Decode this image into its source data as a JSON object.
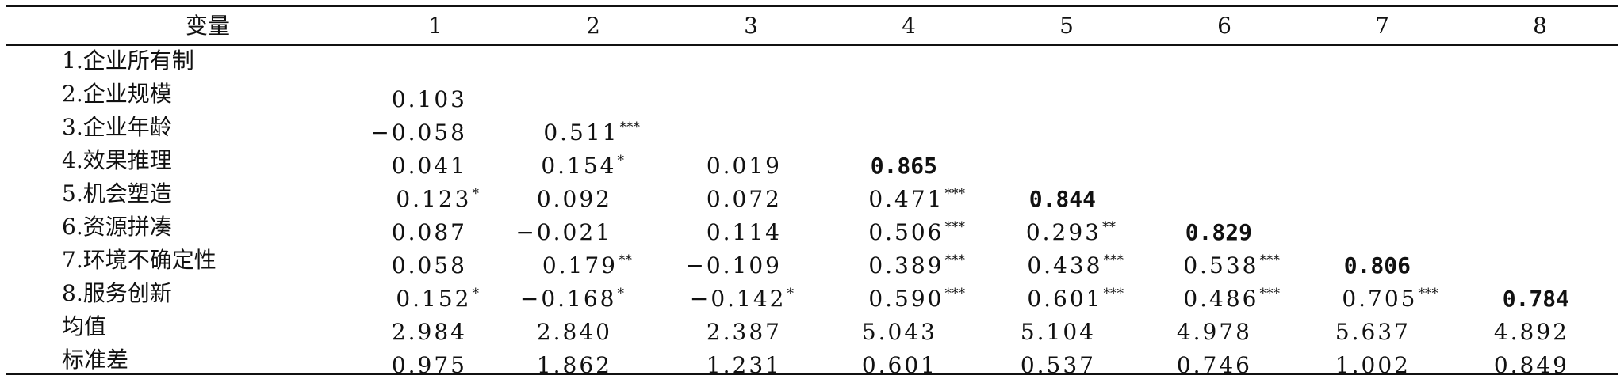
{
  "table": {
    "header": [
      "变量",
      "1",
      "2",
      "3",
      "4",
      "5",
      "6",
      "7",
      "8"
    ],
    "rows": [
      {
        "label": "1.企业所有制",
        "cells": []
      },
      {
        "label": "2.企业规模",
        "cells": [
          {
            "v": "0.103",
            "s": ""
          }
        ]
      },
      {
        "label": "3.企业年龄",
        "cells": [
          {
            "v": "−0.058",
            "s": ""
          },
          {
            "v": "0.511",
            "s": "***"
          }
        ]
      },
      {
        "label": "4.效果推理",
        "cells": [
          {
            "v": "0.041",
            "s": ""
          },
          {
            "v": "0.154",
            "s": "*"
          },
          {
            "v": "0.019",
            "s": ""
          },
          {
            "v": "0.865",
            "s": "",
            "b": true
          }
        ]
      },
      {
        "label": "5.机会塑造",
        "cells": [
          {
            "v": "0.123",
            "s": "*"
          },
          {
            "v": "0.092",
            "s": ""
          },
          {
            "v": "0.072",
            "s": ""
          },
          {
            "v": "0.471",
            "s": "***"
          },
          {
            "v": "0.844",
            "s": "",
            "b": true
          }
        ]
      },
      {
        "label": "6.资源拼凑",
        "cells": [
          {
            "v": "0.087",
            "s": ""
          },
          {
            "v": "−0.021",
            "s": ""
          },
          {
            "v": "0.114",
            "s": ""
          },
          {
            "v": "0.506",
            "s": "***"
          },
          {
            "v": "0.293",
            "s": "**"
          },
          {
            "v": "0.829",
            "s": "",
            "b": true
          }
        ]
      },
      {
        "label": "7.环境不确定性",
        "cells": [
          {
            "v": "0.058",
            "s": ""
          },
          {
            "v": "0.179",
            "s": "**"
          },
          {
            "v": "−0.109",
            "s": ""
          },
          {
            "v": "0.389",
            "s": "***"
          },
          {
            "v": "0.438",
            "s": "***"
          },
          {
            "v": "0.538",
            "s": "***"
          },
          {
            "v": "0.806",
            "s": "",
            "b": true
          }
        ]
      },
      {
        "label": "8.服务创新",
        "cells": [
          {
            "v": "0.152",
            "s": "*"
          },
          {
            "v": "−0.168",
            "s": "*"
          },
          {
            "v": "−0.142",
            "s": "*"
          },
          {
            "v": "0.590",
            "s": "***"
          },
          {
            "v": "0.601",
            "s": "***"
          },
          {
            "v": "0.486",
            "s": "***"
          },
          {
            "v": "0.705",
            "s": "***"
          },
          {
            "v": "0.784",
            "s": "",
            "b": true
          }
        ]
      },
      {
        "label": "均值",
        "cells": [
          {
            "v": "2.984",
            "s": ""
          },
          {
            "v": "2.840",
            "s": ""
          },
          {
            "v": "2.387",
            "s": ""
          },
          {
            "v": "5.043",
            "s": ""
          },
          {
            "v": "5.104",
            "s": ""
          },
          {
            "v": "4.978",
            "s": ""
          },
          {
            "v": "5.637",
            "s": ""
          },
          {
            "v": "4.892",
            "s": ""
          }
        ]
      },
      {
        "label": "标准差",
        "cells": [
          {
            "v": "0.975",
            "s": ""
          },
          {
            "v": "1.862",
            "s": ""
          },
          {
            "v": "1.231",
            "s": ""
          },
          {
            "v": "0.601",
            "s": ""
          },
          {
            "v": "0.537",
            "s": ""
          },
          {
            "v": "0.746",
            "s": ""
          },
          {
            "v": "1.002",
            "s": ""
          },
          {
            "v": "0.849",
            "s": ""
          }
        ]
      }
    ]
  }
}
